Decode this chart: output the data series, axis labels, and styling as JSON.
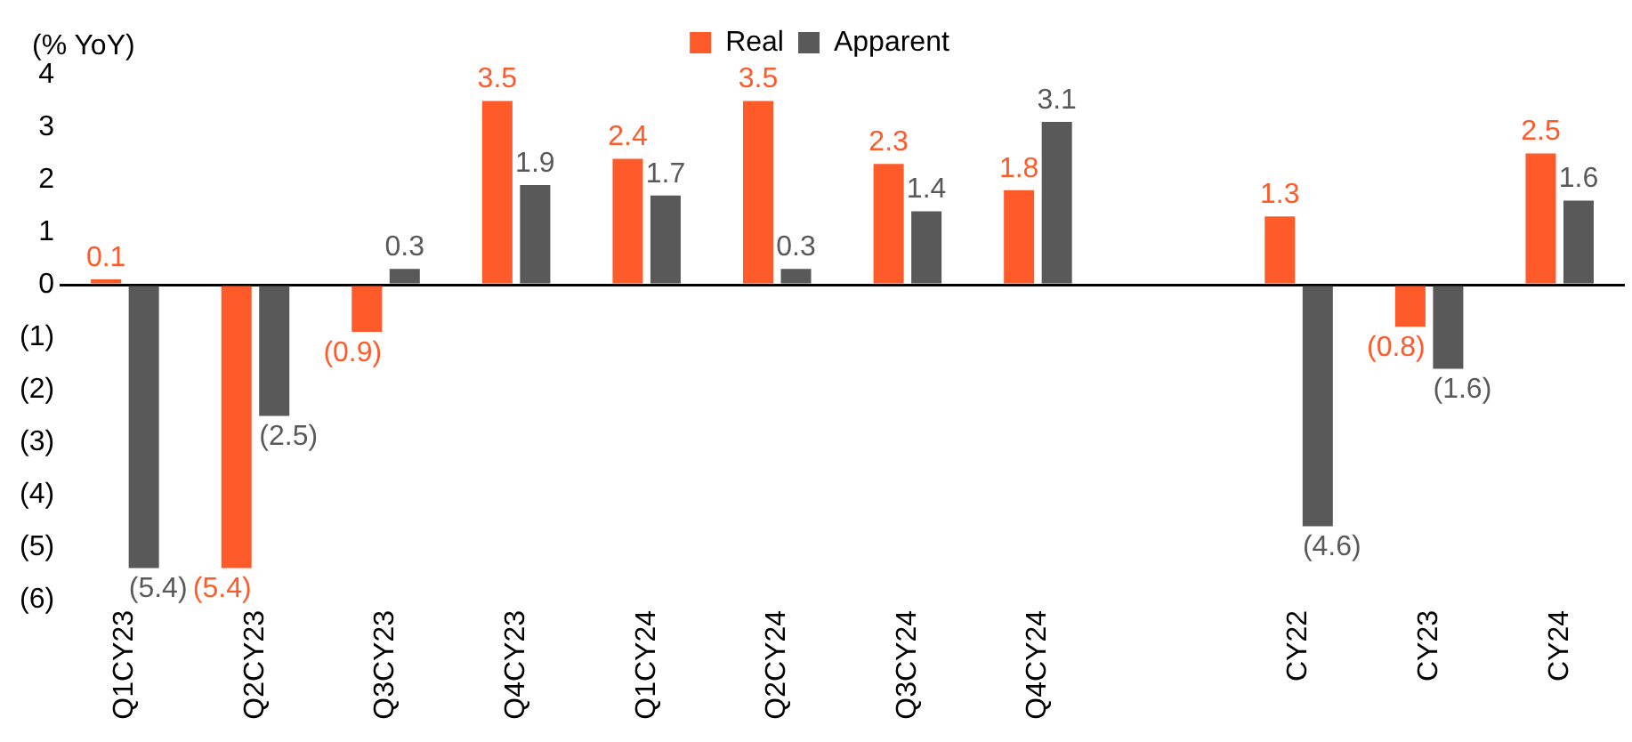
{
  "chart_data": {
    "type": "bar",
    "ylabel": "(% YoY)",
    "legend": "top",
    "categories": [
      "Q1CY23",
      "Q2CY23",
      "Q3CY23",
      "Q4CY23",
      "Q1CY24",
      "Q2CY24",
      "Q3CY24",
      "Q4CY24",
      null,
      "CY22",
      "CY23",
      "CY24"
    ],
    "series": [
      {
        "name": "Real",
        "color": "#ff5a2a",
        "values": [
          0.1,
          -5.4,
          -0.9,
          3.5,
          2.4,
          3.5,
          2.3,
          1.8,
          null,
          1.3,
          -0.8,
          2.5
        ],
        "value_labels": [
          "0.1",
          "(5.4)",
          "(0.9)",
          "3.5",
          "2.4",
          "3.5",
          "2.3",
          "1.8",
          null,
          "1.3",
          "(0.8)",
          "2.5"
        ]
      },
      {
        "name": "Apparent",
        "color": "#595959",
        "values": [
          -5.4,
          -2.5,
          0.3,
          1.9,
          1.7,
          0.3,
          1.4,
          3.1,
          null,
          -4.6,
          -1.6,
          1.6
        ],
        "value_labels": [
          "(5.4)",
          "(2.5)",
          "0.3",
          "1.9",
          "1.7",
          "0.3",
          "1.4",
          "3.1",
          null,
          "(4.6)",
          "(1.6)",
          "1.6"
        ]
      }
    ],
    "ylim": [
      -6,
      4
    ],
    "yticks": [
      {
        "value": -6,
        "label": "(6)"
      },
      {
        "value": -5,
        "label": "(5)"
      },
      {
        "value": -4,
        "label": "(4)"
      },
      {
        "value": -3,
        "label": "(3)"
      },
      {
        "value": -2,
        "label": "(2)"
      },
      {
        "value": -1,
        "label": "(1)"
      },
      0,
      1,
      2,
      3,
      4
    ]
  }
}
